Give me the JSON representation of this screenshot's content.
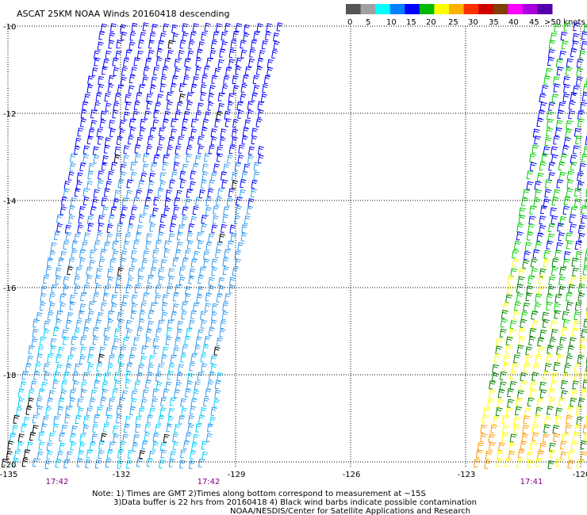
{
  "title": "ASCAT 25KM NOAA Winds 20160418 descending",
  "legend": {
    "colors": [
      "#555555",
      "#a0a0a0",
      "#00ffff",
      "#0080ff",
      "#0000ff",
      "#00bb00",
      "#ffff00",
      "#ffb000",
      "#ff3000",
      "#d00000",
      "#804000",
      "#ff00ff",
      "#aa00dd",
      "#5500aa"
    ],
    "labels": [
      "0",
      "5",
      "10",
      "15",
      "20",
      "25",
      "30",
      "35",
      "40",
      "45",
      ">50 knots"
    ]
  },
  "map": {
    "lon_labels": [
      "-135",
      "-132",
      "-129",
      "-126",
      "-123",
      "-120"
    ],
    "lat_labels": [
      "-10",
      "-12",
      "-14",
      "-16",
      "-18",
      "-20"
    ],
    "time_labels": [
      "17:42",
      "17:42",
      "17:41"
    ],
    "speed_colors": {
      "cyan": "#00ccff",
      "lightblue": "#3399ee",
      "blue": "#0000ff",
      "green": "#00cc00",
      "darkgreen": "#008000",
      "yellow": "#ffff00",
      "orange": "#ff9900",
      "contaminated": "#000000"
    }
  },
  "notes": {
    "line1": "Note: 1) Times are GMT 2)Times along bottom correspond to measurement at ~15S",
    "line2": "3)Data buffer is 22 hrs from 20160418 4) Black wind barbs indicate possible contamination",
    "line3": "NOAA/NESDIS/Center for Satellite Applications and Research"
  }
}
